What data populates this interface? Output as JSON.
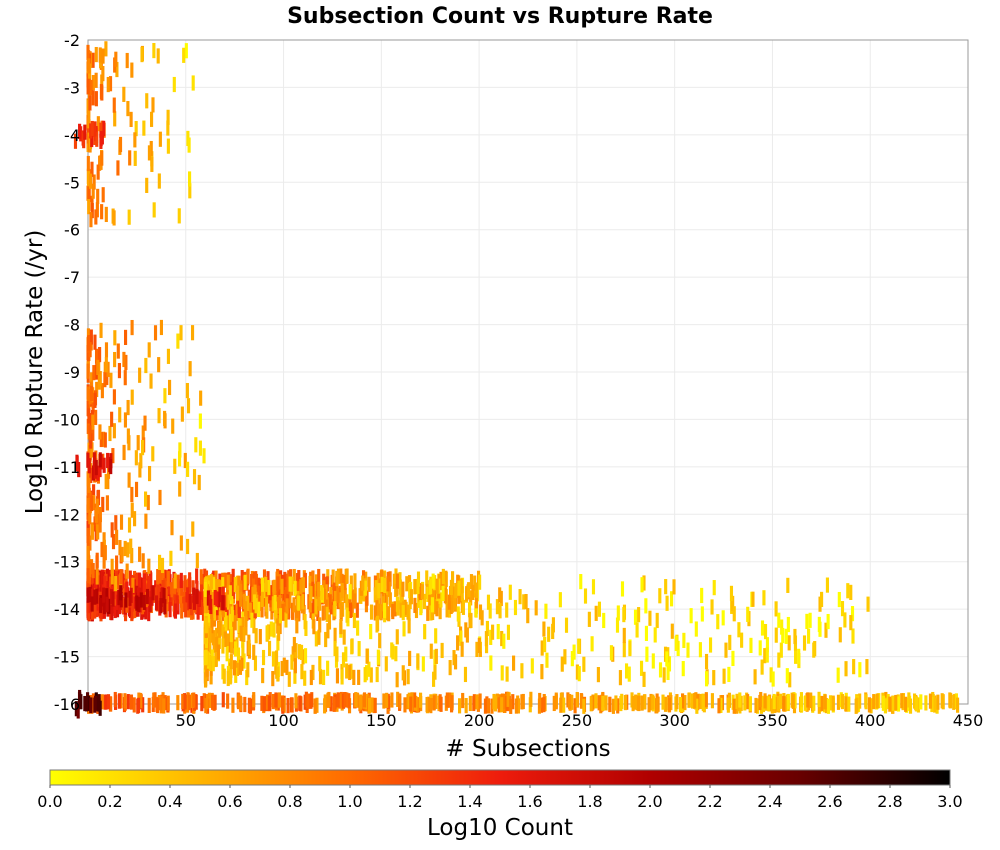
{
  "chart_data": {
    "type": "heatmap",
    "title": "Subsection Count vs Rupture Rate",
    "xlabel": "# Subsections",
    "ylabel": "Log10 Rupture Rate (/yr)",
    "xlim": [
      0,
      450
    ],
    "ylim": [
      -16,
      -2
    ],
    "x_ticks": [
      50,
      100,
      150,
      200,
      250,
      300,
      350,
      400,
      450
    ],
    "y_ticks": [
      -2,
      -3,
      -4,
      -5,
      -6,
      -7,
      -8,
      -9,
      -10,
      -11,
      -12,
      -13,
      -14,
      -15,
      -16
    ],
    "grid": true,
    "colorbar": {
      "label": "Log10 Count",
      "range": [
        0.0,
        3.0
      ],
      "ticks": [
        "0.0",
        "0.2",
        "0.4",
        "0.6",
        "0.8",
        "1.0",
        "1.2",
        "1.4",
        "1.6",
        "1.8",
        "2.0",
        "2.2",
        "2.4",
        "2.6",
        "2.8",
        "3.0"
      ],
      "colors": [
        "#ffff00",
        "#ffb400",
        "#ff6a00",
        "#ee1c0c",
        "#b00000",
        "#680000",
        "#000000"
      ],
      "placement": "bottom"
    },
    "cell_width_x": 1,
    "cell_height_y": 0.1,
    "bands": [
      {
        "description": "bottom",
        "x_range": [
          0,
          445
        ],
        "y_range": [
          -16.05,
          -15.9
        ],
        "value": 0.9
      },
      {
        "description": "main",
        "x_range": [
          0,
          200
        ],
        "y_range": [
          -14.1,
          -13.3
        ],
        "value": 1.2
      },
      {
        "description": "spread",
        "x_range": [
          60,
          400
        ],
        "y_range": [
          -15.5,
          -13.4
        ],
        "value": 0.4
      },
      {
        "description": "mid",
        "x_range": [
          0,
          60
        ],
        "y_range": [
          -13.5,
          -8.0
        ],
        "value": 0.8
      },
      {
        "description": "top",
        "x_range": [
          0,
          55
        ],
        "y_range": [
          -5.8,
          -2.1
        ],
        "value": 0.7
      }
    ],
    "hot_cells": [
      {
        "x": 1,
        "y": -16.0,
        "value": 2.8
      },
      {
        "x": 2,
        "y": -11.0,
        "value": 1.9
      },
      {
        "x": 3,
        "y": -4.0,
        "value": 1.6
      },
      {
        "x": 10,
        "y": -13.8,
        "value": 2.2
      },
      {
        "x": 30,
        "y": -13.8,
        "value": 2.0
      },
      {
        "x": 60,
        "y": -13.8,
        "value": 1.8
      }
    ]
  }
}
